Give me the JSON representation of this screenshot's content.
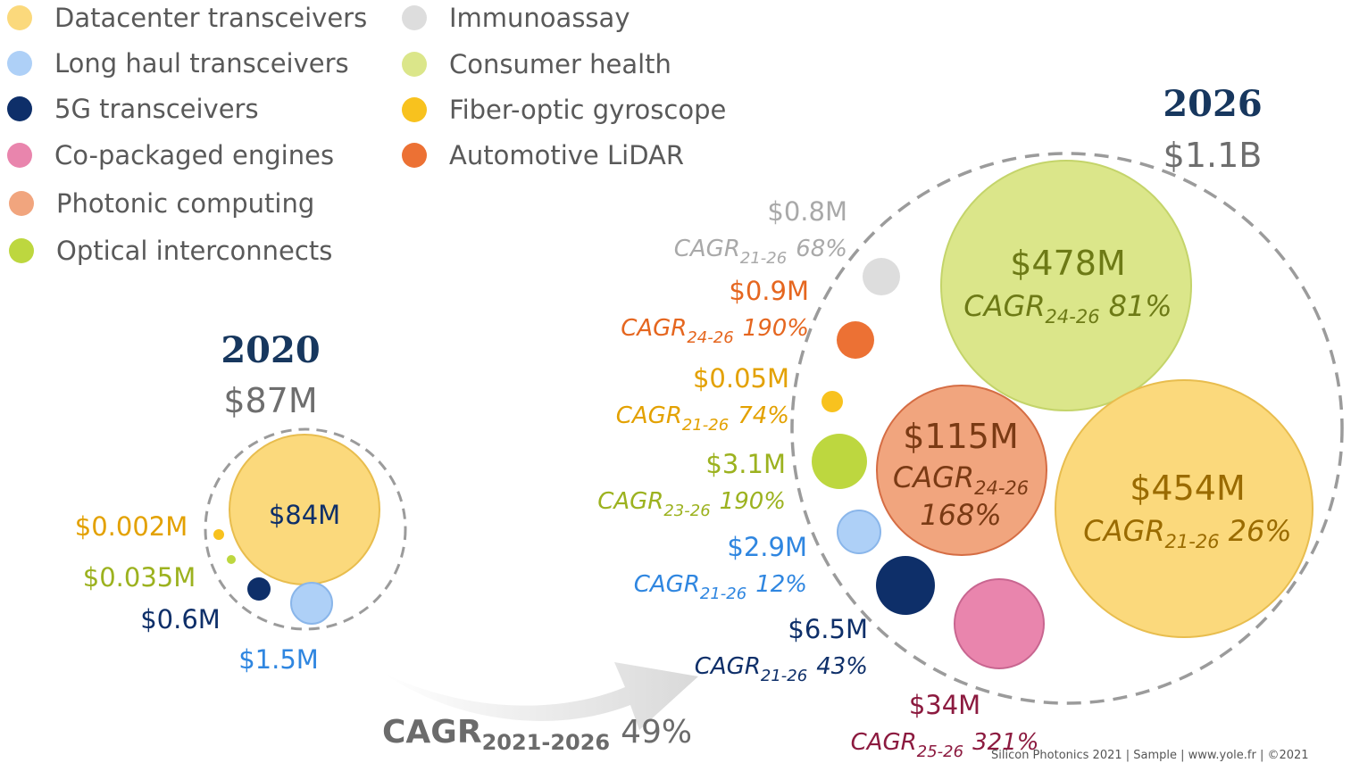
{
  "legend": [
    {
      "label": "Datacenter transceivers",
      "color": "#fbd97c"
    },
    {
      "label": "Long haul transceivers",
      "color": "#aed0f7"
    },
    {
      "label": "5G transceivers",
      "color": "#0e2f69"
    },
    {
      "label": "Co-packaged engines",
      "color": "#e985ad"
    },
    {
      "label": "Photonic computing",
      "color": "#f1a57e"
    },
    {
      "label": "Optical interconnects",
      "color": "#bdd73f"
    },
    {
      "label": "Immunoassay",
      "color": "#dddddd"
    },
    {
      "label": "Consumer health",
      "color": "#dbe68a"
    },
    {
      "label": "Fiber-optic gyroscope",
      "color": "#f8c21e"
    },
    {
      "label": "Automotive LiDAR",
      "color": "#ec7134"
    }
  ],
  "year2020": {
    "year": "2020",
    "total": "$87M"
  },
  "year2026": {
    "year": "2026",
    "total": "$1.1B"
  },
  "overall_cagr": {
    "base": "CAGR",
    "sub": "2021-2026",
    "value": "49%"
  },
  "footer": "Silicon Photonics 2021 | Sample | www.yole.fr | ©2021",
  "chart_data": {
    "type": "bubble",
    "panels": [
      {
        "year": "2020",
        "total": "$87M",
        "bubbles": [
          {
            "series": "Datacenter transceivers",
            "value_label": "$84M",
            "value_musd": 84
          },
          {
            "series": "Long haul transceivers",
            "value_label": "$1.5M",
            "value_musd": 1.5
          },
          {
            "series": "5G transceivers",
            "value_label": "$0.6M",
            "value_musd": 0.6
          },
          {
            "series": "Optical interconnects",
            "value_label": "$0.035M",
            "value_musd": 0.035
          },
          {
            "series": "Fiber-optic gyroscope",
            "value_label": "$0.002M",
            "value_musd": 0.002
          }
        ]
      },
      {
        "year": "2026",
        "total": "$1.1B",
        "bubbles": [
          {
            "series": "Consumer health",
            "value_label": "$478M",
            "value_musd": 478,
            "cagr_base": "CAGR",
            "cagr_period": "24-26",
            "cagr_value": "81%"
          },
          {
            "series": "Datacenter transceivers",
            "value_label": "$454M",
            "value_musd": 454,
            "cagr_base": "CAGR",
            "cagr_period": "21-26",
            "cagr_value": "26%"
          },
          {
            "series": "Photonic computing",
            "value_label": "$115M",
            "value_musd": 115,
            "cagr_base": "CAGR",
            "cagr_period": "24-26",
            "cagr_value": "168%"
          },
          {
            "series": "Co-packaged engines",
            "value_label": "$34M",
            "value_musd": 34,
            "cagr_base": "CAGR",
            "cagr_period": "25-26",
            "cagr_value": "321%"
          },
          {
            "series": "5G transceivers",
            "value_label": "$6.5M",
            "value_musd": 6.5,
            "cagr_base": "CAGR",
            "cagr_period": "21-26",
            "cagr_value": "43%"
          },
          {
            "series": "Optical interconnects",
            "value_label": "$3.1M",
            "value_musd": 3.1,
            "cagr_base": "CAGR",
            "cagr_period": "23-26",
            "cagr_value": "190%"
          },
          {
            "series": "Long haul transceivers",
            "value_label": "$2.9M",
            "value_musd": 2.9,
            "cagr_base": "CAGR",
            "cagr_period": "21-26",
            "cagr_value": "12%"
          },
          {
            "series": "Automotive LiDAR",
            "value_label": "$0.9M",
            "value_musd": 0.9,
            "cagr_base": "CAGR",
            "cagr_period": "24-26",
            "cagr_value": "190%"
          },
          {
            "series": "Immunoassay",
            "value_label": "$0.8M",
            "value_musd": 0.8,
            "cagr_base": "CAGR",
            "cagr_period": "21-26",
            "cagr_value": "68%"
          },
          {
            "series": "Fiber-optic gyroscope",
            "value_label": "$0.05M",
            "value_musd": 0.05,
            "cagr_base": "CAGR",
            "cagr_period": "21-26",
            "cagr_value": "74%"
          }
        ]
      }
    ]
  }
}
